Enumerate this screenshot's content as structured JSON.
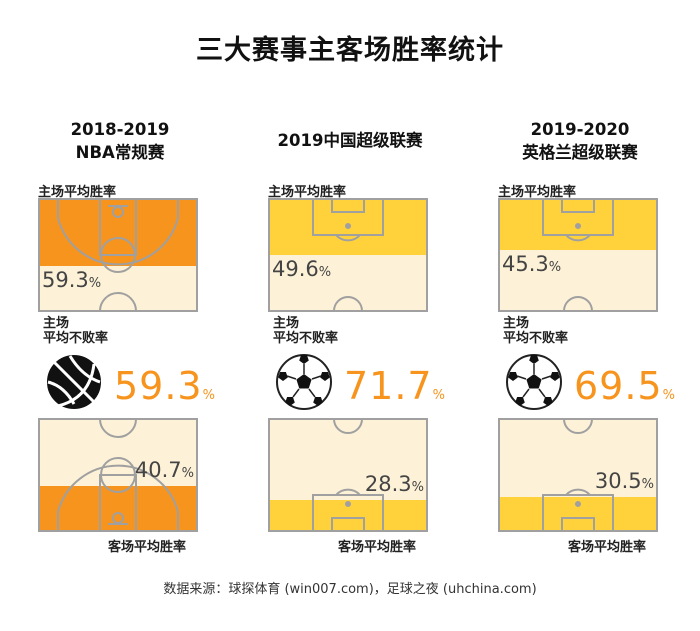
{
  "title": "三大赛事主客场胜率统计",
  "source": "数据来源：球探体育 (win007.com)，足球之夜 (uhchina.com)",
  "labels": {
    "home_win": "主场平均胜率",
    "home_unbeaten_1": "主场",
    "home_unbeaten_2": "平均不败率",
    "away_win": "客场平均胜率",
    "unit": "%"
  },
  "colors": {
    "nba": "#f7941d",
    "football": "#ffd23c",
    "court_bg": "#fdf2d8",
    "lines": "#a0a0a0"
  },
  "chart_data": {
    "type": "bar",
    "categories": [
      "2018-2019 NBA常规赛",
      "2019中国超级联赛",
      "2019-2020 英格兰超级联赛"
    ],
    "series": [
      {
        "name": "主场平均胜率",
        "values": [
          59.3,
          49.6,
          45.3
        ]
      },
      {
        "name": "主场平均不败率",
        "values": [
          59.3,
          71.7,
          69.5
        ]
      },
      {
        "name": "客场平均胜率",
        "values": [
          40.7,
          28.3,
          30.5
        ]
      }
    ],
    "ylim": [
      0,
      100
    ]
  },
  "leagues": [
    {
      "title_1": "2018-2019",
      "title_2": "NBA常规赛",
      "sport": "basketball",
      "ball_icon": "basketball-icon",
      "home_win": "59.3",
      "home_unbeaten": "59.3",
      "away_win": "40.7"
    },
    {
      "title_1": "2019中国超级联赛",
      "title_2": "",
      "sport": "football",
      "ball_icon": "soccer-ball-icon",
      "home_win": "49.6",
      "home_unbeaten": "71.7",
      "away_win": "28.3"
    },
    {
      "title_1": "2019-2020",
      "title_2": "英格兰超级联赛",
      "sport": "football",
      "ball_icon": "soccer-ball-icon",
      "home_win": "45.3",
      "home_unbeaten": "69.5",
      "away_win": "30.5"
    }
  ]
}
